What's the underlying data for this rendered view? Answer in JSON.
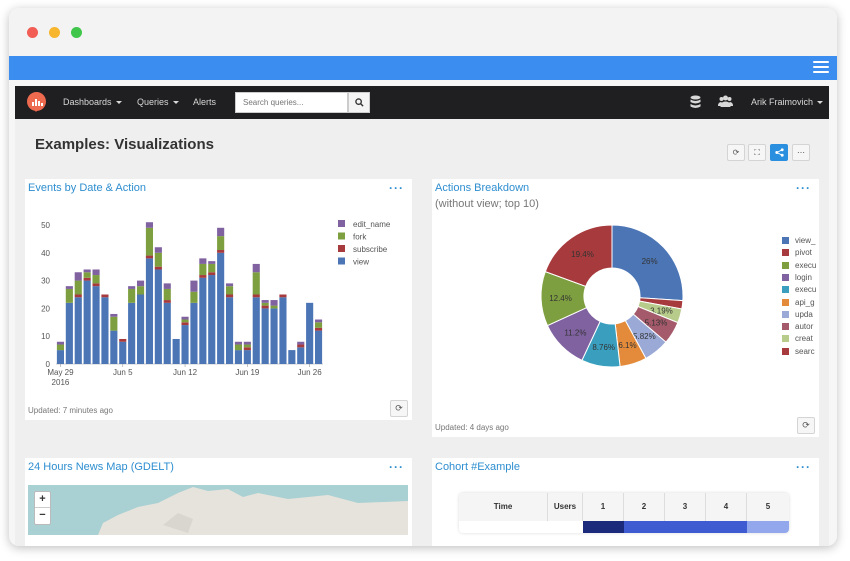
{
  "navbar": {
    "dashboards": "Dashboards",
    "queries": "Queries",
    "alerts": "Alerts",
    "search_placeholder": "Search queries...",
    "user": "Arik Fraimovich",
    "icons": [
      "database-icon",
      "users-icon",
      "search-icon"
    ]
  },
  "page": {
    "title": "Examples: Visualizations",
    "toolbar_icons": [
      "refresh-icon",
      "fullscreen-icon",
      "share-icon",
      "more-icon"
    ]
  },
  "cards": {
    "events": {
      "title": "Events by Date & Action",
      "menu": "···",
      "updated": "Updated: 7 minutes ago"
    },
    "actions": {
      "title": "Actions Breakdown",
      "subtitle": "(without view; top 10)",
      "menu": "···",
      "updated": "Updated: 4 days ago"
    },
    "map": {
      "title": "24 Hours News Map (GDELT)",
      "menu": "···",
      "zoom_in": "+",
      "zoom_out": "−"
    },
    "cohort": {
      "title": "Cohort #Example",
      "menu": "···",
      "headers": [
        "Time",
        "Users",
        "1",
        "2",
        "3",
        "4",
        "5"
      ],
      "colors": [
        "#ffffff",
        "#ffffff",
        "#1b2a7a",
        "#3f5bd2",
        "#3f5bd2",
        "#3f5bd2",
        "#93a8ec"
      ]
    }
  },
  "chart_data": [
    {
      "type": "bar",
      "stacked": true,
      "title": "Events by Date & Action",
      "x_tick_labels": [
        "May 29\n2016",
        "Jun 5",
        "Jun 12",
        "Jun 19",
        "Jun 26"
      ],
      "x_tick_index": [
        0,
        7,
        14,
        21,
        28
      ],
      "ylim": [
        0,
        50
      ],
      "y_ticks": [
        0,
        10,
        20,
        30,
        40,
        50
      ],
      "legend": [
        "edit_name",
        "fork",
        "subscribe",
        "view"
      ],
      "legend_position": "top-right",
      "colors": {
        "view": "#4b75b5",
        "subscribe": "#a73a3d",
        "fork": "#7e9f3f",
        "edit_name": "#8062a1"
      },
      "series": [
        {
          "name": "view",
          "values": [
            5,
            22,
            24,
            30,
            28,
            24,
            12,
            8,
            22,
            25,
            38,
            34,
            22,
            9,
            14,
            22,
            31,
            32,
            40,
            24,
            5,
            5,
            24,
            20,
            20,
            24,
            5,
            6,
            22,
            12
          ]
        },
        {
          "name": "subscribe",
          "values": [
            0,
            0,
            1,
            1,
            1,
            1,
            0,
            1,
            0,
            0,
            1,
            1,
            1,
            0,
            1,
            0,
            1,
            1,
            1,
            1,
            0,
            1,
            1,
            1,
            0,
            1,
            0,
            1,
            0,
            1
          ]
        },
        {
          "name": "fork",
          "values": [
            2,
            5,
            5,
            2,
            3,
            0,
            5,
            0,
            5,
            3,
            10,
            5,
            4,
            0,
            1,
            4,
            4,
            3,
            5,
            3,
            2,
            1,
            8,
            1,
            1,
            0,
            0,
            0,
            0,
            2
          ]
        },
        {
          "name": "edit_name",
          "values": [
            1,
            1,
            3,
            1,
            2,
            0,
            1,
            0,
            1,
            2,
            2,
            2,
            2,
            0,
            1,
            4,
            2,
            1,
            3,
            1,
            1,
            1,
            3,
            1,
            2,
            0,
            0,
            1,
            0,
            1
          ]
        }
      ]
    },
    {
      "type": "pie",
      "donut": true,
      "title": "Actions Breakdown",
      "subtitle": "(without view; top 10)",
      "slices": [
        {
          "label": "view_",
          "value": 26,
          "text": "26%",
          "color": "#4b75b5"
        },
        {
          "label": "pivot",
          "value": 1.9,
          "text": "",
          "color": "#a73a3d"
        },
        {
          "label": "execu",
          "value": 3.19,
          "text": "3.19%",
          "color": "#b7cc8a"
        },
        {
          "label": "login",
          "value": 5.13,
          "text": "5.13%",
          "color": "#a45a6a"
        },
        {
          "label": "execu",
          "value": 5.82,
          "text": "5.82%",
          "color": "#9aa9d6"
        },
        {
          "label": "api_g",
          "value": 6.1,
          "text": "6.1%",
          "color": "#e38b3a"
        },
        {
          "label": "upda",
          "value": 8.76,
          "text": "8.76%",
          "color": "#3a9fbf"
        },
        {
          "label": "autor",
          "value": 11.2,
          "text": "11.2%",
          "color": "#8062a1"
        },
        {
          "label": "creat",
          "value": 12.4,
          "text": "12.4%",
          "color": "#7e9f3f"
        },
        {
          "label": "searc",
          "value": 19.4,
          "text": "19.4%",
          "color": "#a73a3d"
        }
      ],
      "legend_labels": [
        "view_",
        "pivot",
        "execu",
        "login",
        "execu",
        "api_g",
        "upda",
        "autor",
        "creat",
        "searc"
      ],
      "legend_colors": [
        "#4b75b5",
        "#a73a3d",
        "#7e9f3f",
        "#8062a1",
        "#3a9fbf",
        "#e38b3a",
        "#9aa9d6",
        "#a45a6a",
        "#b7cc8a",
        "#a73a3d"
      ],
      "legend_position": "right"
    }
  ]
}
